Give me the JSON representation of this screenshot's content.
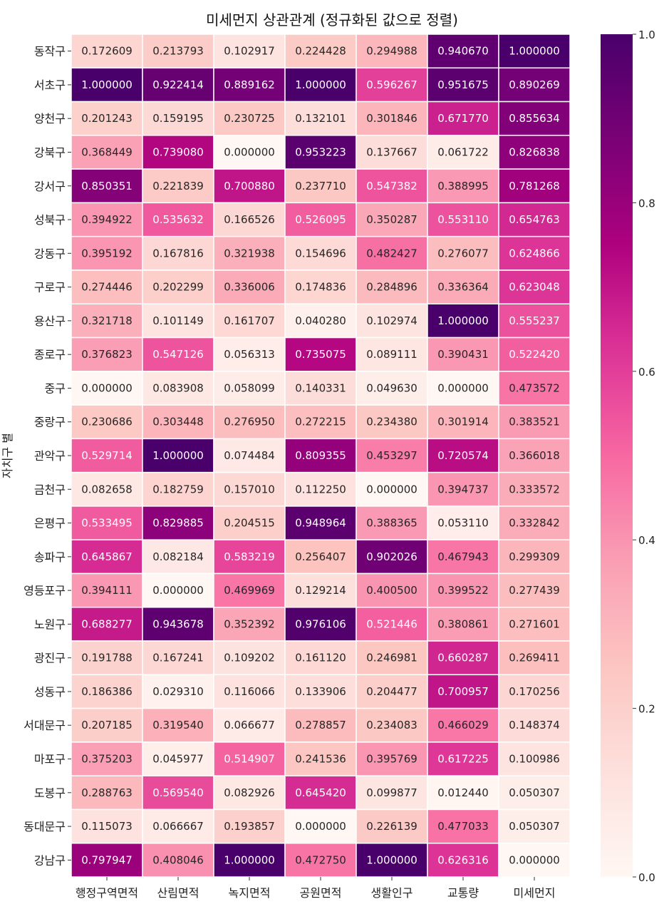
{
  "chart_data": {
    "type": "heatmap",
    "title": "미세먼지 상관관계 (정규화된 값으로 정렬)",
    "ylabel": "자치구 별",
    "xlabel": "",
    "columns": [
      "행정구역면적",
      "산림면적",
      "녹지면적",
      "공원면적",
      "생활인구",
      "교통량",
      "미세먼지"
    ],
    "rows": [
      "동작구",
      "서초구",
      "양천구",
      "강북구",
      "강서구",
      "성북구",
      "강동구",
      "구로구",
      "용산구",
      "종로구",
      "중구",
      "중랑구",
      "관악구",
      "금천구",
      "은평구",
      "송파구",
      "영등포구",
      "노원구",
      "광진구",
      "성동구",
      "서대문구",
      "마포구",
      "도봉구",
      "동대문구",
      "강남구"
    ],
    "values": [
      [
        0.172609,
        0.213793,
        0.102917,
        0.224428,
        0.294988,
        0.94067,
        1.0
      ],
      [
        1.0,
        0.922414,
        0.889162,
        1.0,
        0.596267,
        0.951675,
        0.890269
      ],
      [
        0.201243,
        0.159195,
        0.230725,
        0.132101,
        0.301846,
        0.67177,
        0.855634
      ],
      [
        0.368449,
        0.73908,
        0.0,
        0.953223,
        0.137667,
        0.061722,
        0.826838
      ],
      [
        0.850351,
        0.221839,
        0.70088,
        0.23771,
        0.547382,
        0.388995,
        0.781268
      ],
      [
        0.394922,
        0.535632,
        0.166526,
        0.526095,
        0.350287,
        0.55311,
        0.654763
      ],
      [
        0.395192,
        0.167816,
        0.321938,
        0.154696,
        0.482427,
        0.276077,
        0.624866
      ],
      [
        0.274446,
        0.202299,
        0.336006,
        0.174836,
        0.284896,
        0.336364,
        0.623048
      ],
      [
        0.321718,
        0.101149,
        0.161707,
        0.04028,
        0.102974,
        1.0,
        0.555237
      ],
      [
        0.376823,
        0.547126,
        0.056313,
        0.735075,
        0.089111,
        0.390431,
        0.52242
      ],
      [
        0.0,
        0.083908,
        0.058099,
        0.140331,
        0.04963,
        0.0,
        0.473572
      ],
      [
        0.230686,
        0.303448,
        0.27695,
        0.272215,
        0.23438,
        0.301914,
        0.383521
      ],
      [
        0.529714,
        1.0,
        0.074484,
        0.809355,
        0.453297,
        0.720574,
        0.366018
      ],
      [
        0.082658,
        0.182759,
        0.15701,
        0.11225,
        0.0,
        0.394737,
        0.333572
      ],
      [
        0.533495,
        0.829885,
        0.204515,
        0.948964,
        0.388365,
        0.05311,
        0.332842
      ],
      [
        0.645867,
        0.082184,
        0.583219,
        0.256407,
        0.902026,
        0.467943,
        0.299309
      ],
      [
        0.394111,
        0.0,
        0.469969,
        0.129214,
        0.4005,
        0.399522,
        0.277439
      ],
      [
        0.688277,
        0.943678,
        0.352392,
        0.976106,
        0.521446,
        0.380861,
        0.271601
      ],
      [
        0.191788,
        0.167241,
        0.109202,
        0.16112,
        0.246981,
        0.660287,
        0.269411
      ],
      [
        0.186386,
        0.02931,
        0.116066,
        0.133906,
        0.204477,
        0.700957,
        0.170256
      ],
      [
        0.207185,
        0.31954,
        0.066677,
        0.278857,
        0.234083,
        0.466029,
        0.148374
      ],
      [
        0.375203,
        0.045977,
        0.514907,
        0.241536,
        0.395769,
        0.617225,
        0.100986
      ],
      [
        0.288763,
        0.56954,
        0.082926,
        0.64542,
        0.099877,
        0.01244,
        0.050307
      ],
      [
        0.115073,
        0.066667,
        0.193857,
        0.0,
        0.226139,
        0.477033,
        0.050307
      ],
      [
        0.797947,
        0.408046,
        1.0,
        0.47275,
        1.0,
        0.626316,
        0.0
      ]
    ],
    "value_format": "6 decimals",
    "colormap": "RdPu",
    "colorbar": {
      "min": 0.0,
      "max": 1.0,
      "ticks": [
        0.0,
        0.2,
        0.4,
        0.6,
        0.8,
        1.0
      ],
      "tick_labels": [
        "0.0",
        "0.2",
        "0.4",
        "0.6",
        "0.8",
        "1.0"
      ]
    },
    "cell_separator_color": "#ffffff",
    "legend": "colorbar-right"
  }
}
